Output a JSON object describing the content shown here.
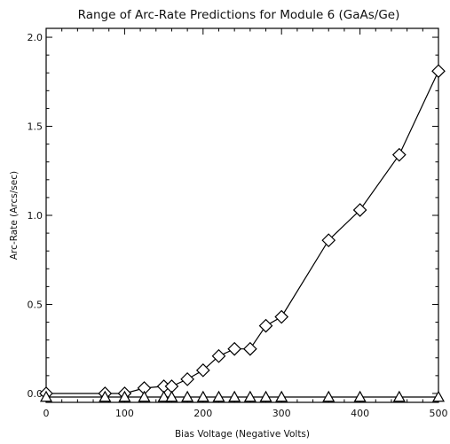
{
  "chart_data": {
    "type": "line",
    "title": "Range of Arc-Rate Predictions for Module 6 (GaAs/Ge)",
    "xlabel": "Bias Voltage (Negative Volts)",
    "ylabel": "Arc-Rate (Arcs/sec)",
    "xlim": [
      0,
      500
    ],
    "ylim": [
      -0.05,
      2.05
    ],
    "xticks": [
      "0",
      "100",
      "200",
      "300",
      "400",
      "500"
    ],
    "yticks": [
      "0.0",
      "0.5",
      "1.0",
      "1.5",
      "2.0"
    ],
    "xtick_values": [
      0,
      100,
      200,
      300,
      400,
      500
    ],
    "ytick_values": [
      0.0,
      0.5,
      1.0,
      1.5,
      2.0
    ],
    "grid": false,
    "legend": "none",
    "series": [
      {
        "marker": "diamond",
        "x": [
          0,
          75,
          100,
          125,
          150,
          160,
          180,
          200,
          220,
          240,
          260,
          280,
          300,
          360,
          400,
          450,
          500
        ],
        "y": [
          0.0,
          0.0,
          0.0,
          0.03,
          0.04,
          0.04,
          0.08,
          0.13,
          0.21,
          0.25,
          0.25,
          0.38,
          0.43,
          0.86,
          1.03,
          1.34,
          1.81
        ]
      },
      {
        "marker": "triangle",
        "x": [
          0,
          75,
          100,
          125,
          150,
          160,
          180,
          200,
          220,
          240,
          260,
          280,
          300,
          360,
          400,
          450,
          500
        ],
        "y": [
          -0.02,
          -0.02,
          -0.02,
          -0.02,
          -0.02,
          -0.02,
          -0.02,
          -0.02,
          -0.02,
          -0.02,
          -0.02,
          -0.02,
          -0.02,
          -0.02,
          -0.02,
          -0.02,
          -0.02
        ]
      }
    ]
  }
}
